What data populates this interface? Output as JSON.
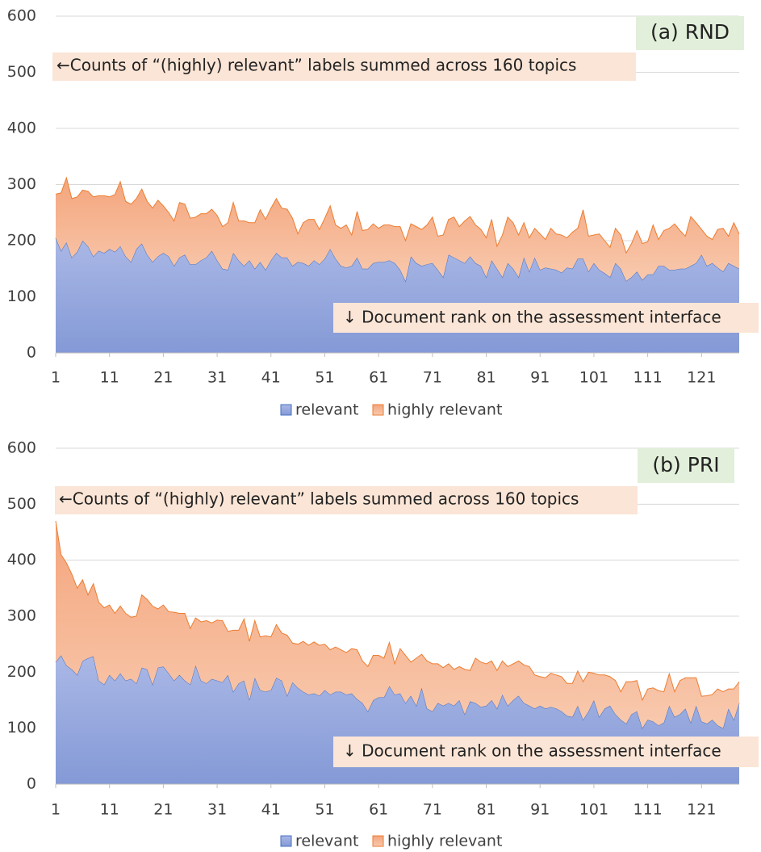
{
  "chart_data": [
    {
      "type": "area",
      "stacked": true,
      "annotations": [
        "(a) RND",
        "←Counts of “(highly) relevant” labels summed across 160 topics",
        "↓ Document rank on the assessment interface"
      ],
      "x": [
        1,
        2,
        3,
        4,
        5,
        6,
        7,
        8,
        9,
        10,
        11,
        12,
        13,
        14,
        15,
        16,
        17,
        18,
        19,
        20,
        21,
        22,
        23,
        24,
        25,
        26,
        27,
        28,
        29,
        30,
        31,
        32,
        33,
        34,
        35,
        36,
        37,
        38,
        39,
        40,
        41,
        42,
        43,
        44,
        45,
        46,
        47,
        48,
        49,
        50,
        51,
        52,
        53,
        54,
        55,
        56,
        57,
        58,
        59,
        60,
        61,
        62,
        63,
        64,
        65,
        66,
        67,
        68,
        69,
        70,
        71,
        72,
        73,
        74,
        75,
        76,
        77,
        78,
        79,
        80,
        81,
        82,
        83,
        84,
        85,
        86,
        87,
        88,
        89,
        90,
        91,
        92,
        93,
        94,
        95,
        96,
        97,
        98,
        99,
        100,
        101,
        102,
        103,
        104,
        105,
        106,
        107,
        108,
        109,
        110,
        111,
        112,
        113,
        114,
        115,
        116,
        117,
        118,
        119,
        120,
        121,
        122,
        123,
        124,
        125,
        126,
        127,
        128
      ],
      "xlim": [
        1,
        128
      ],
      "xticks": [
        1,
        11,
        21,
        31,
        41,
        51,
        61,
        71,
        81,
        91,
        101,
        111,
        121
      ],
      "ylim": [
        0,
        600
      ],
      "yticks": [
        0,
        100,
        200,
        300,
        400,
        500,
        600
      ],
      "grid": true,
      "legend": "bottom",
      "series": [
        {
          "name": "relevant",
          "color": "#4472c4",
          "values": [
            205,
            182,
            197,
            170,
            180,
            200,
            190,
            172,
            182,
            178,
            185,
            180,
            190,
            172,
            162,
            185,
            195,
            175,
            162,
            172,
            178,
            172,
            155,
            170,
            175,
            158,
            158,
            165,
            170,
            182,
            165,
            150,
            148,
            178,
            165,
            155,
            165,
            150,
            162,
            148,
            165,
            178,
            170,
            170,
            155,
            162,
            160,
            155,
            165,
            158,
            168,
            185,
            168,
            155,
            152,
            155,
            170,
            150,
            150,
            160,
            162,
            162,
            165,
            160,
            148,
            128,
            172,
            160,
            155,
            158,
            160,
            148,
            135,
            175,
            170,
            165,
            160,
            172,
            160,
            155,
            135,
            165,
            150,
            135,
            160,
            150,
            135,
            170,
            145,
            170,
            148,
            152,
            150,
            148,
            143,
            152,
            150,
            168,
            168,
            145,
            160,
            148,
            142,
            135,
            160,
            150,
            128,
            135,
            145,
            130,
            140,
            140,
            155,
            155,
            148,
            148,
            150,
            150,
            155,
            160,
            175,
            155,
            160,
            152,
            145,
            160,
            155,
            150
          ]
        },
        {
          "name": "highly relevant",
          "color": "#ed7d31",
          "values": [
            78,
            103,
            115,
            105,
            98,
            90,
            98,
            106,
            98,
            102,
            93,
            102,
            115,
            98,
            103,
            90,
            97,
            95,
            96,
            100,
            84,
            78,
            80,
            98,
            90,
            82,
            84,
            83,
            78,
            74,
            80,
            75,
            84,
            90,
            70,
            80,
            67,
            82,
            93,
            90,
            93,
            97,
            88,
            86,
            85,
            50,
            72,
            83,
            73,
            62,
            72,
            77,
            60,
            67,
            76,
            55,
            82,
            68,
            70,
            70,
            60,
            66,
            63,
            65,
            77,
            72,
            58,
            65,
            65,
            70,
            82,
            60,
            75,
            63,
            72,
            60,
            75,
            71,
            68,
            65,
            70,
            73,
            40,
            75,
            82,
            82,
            75,
            62,
            60,
            52,
            64,
            50,
            72,
            64,
            67,
            53,
            65,
            54,
            87,
            63,
            50,
            64,
            58,
            53,
            62,
            60,
            50,
            60,
            73,
            65,
            58,
            88,
            47,
            63,
            74,
            82,
            68,
            58,
            88,
            72,
            45,
            53,
            42,
            68,
            77,
            48,
            77,
            62
          ]
        }
      ]
    },
    {
      "type": "area",
      "stacked": true,
      "annotations": [
        "(b) PRI",
        "←Counts of “(highly) relevant” labels summed across 160 topics",
        "↓ Document rank on the assessment interface"
      ],
      "x": [
        1,
        2,
        3,
        4,
        5,
        6,
        7,
        8,
        9,
        10,
        11,
        12,
        13,
        14,
        15,
        16,
        17,
        18,
        19,
        20,
        21,
        22,
        23,
        24,
        25,
        26,
        27,
        28,
        29,
        30,
        31,
        32,
        33,
        34,
        35,
        36,
        37,
        38,
        39,
        40,
        41,
        42,
        43,
        44,
        45,
        46,
        47,
        48,
        49,
        50,
        51,
        52,
        53,
        54,
        55,
        56,
        57,
        58,
        59,
        60,
        61,
        62,
        63,
        64,
        65,
        66,
        67,
        68,
        69,
        70,
        71,
        72,
        73,
        74,
        75,
        76,
        77,
        78,
        79,
        80,
        81,
        82,
        83,
        84,
        85,
        86,
        87,
        88,
        89,
        90,
        91,
        92,
        93,
        94,
        95,
        96,
        97,
        98,
        99,
        100,
        101,
        102,
        103,
        104,
        105,
        106,
        107,
        108,
        109,
        110,
        111,
        112,
        113,
        114,
        115,
        116,
        117,
        118,
        119,
        120,
        121,
        122,
        123,
        124,
        125,
        126,
        127,
        128
      ],
      "xlim": [
        1,
        128
      ],
      "xticks": [
        1,
        11,
        21,
        31,
        41,
        51,
        61,
        71,
        81,
        91,
        101,
        111,
        121
      ],
      "ylim": [
        0,
        600
      ],
      "yticks": [
        0,
        100,
        200,
        300,
        400,
        500,
        600
      ],
      "grid": true,
      "legend": "bottom",
      "series": [
        {
          "name": "relevant",
          "color": "#4472c4",
          "values": [
            218,
            230,
            212,
            205,
            195,
            220,
            225,
            228,
            185,
            178,
            195,
            185,
            198,
            185,
            188,
            180,
            208,
            205,
            178,
            208,
            210,
            198,
            185,
            195,
            185,
            178,
            212,
            185,
            180,
            188,
            185,
            182,
            195,
            165,
            180,
            185,
            150,
            190,
            168,
            165,
            168,
            190,
            185,
            158,
            182,
            172,
            165,
            160,
            162,
            158,
            168,
            160,
            165,
            165,
            160,
            162,
            152,
            145,
            130,
            150,
            155,
            155,
            175,
            160,
            162,
            145,
            158,
            140,
            172,
            135,
            130,
            145,
            140,
            145,
            140,
            150,
            125,
            148,
            145,
            138,
            140,
            150,
            135,
            160,
            140,
            150,
            158,
            145,
            140,
            135,
            140,
            135,
            138,
            135,
            130,
            122,
            120,
            140,
            115,
            130,
            150,
            120,
            135,
            140,
            125,
            115,
            108,
            125,
            130,
            100,
            115,
            112,
            105,
            110,
            140,
            120,
            125,
            135,
            110,
            140,
            112,
            108,
            115,
            105,
            100,
            135,
            115,
            145
          ]
        },
        {
          "name": "highly relevant",
          "color": "#ed7d31",
          "values": [
            252,
            180,
            183,
            170,
            155,
            145,
            113,
            130,
            140,
            137,
            125,
            120,
            120,
            120,
            110,
            120,
            130,
            125,
            140,
            105,
            110,
            110,
            122,
            110,
            120,
            100,
            85,
            105,
            112,
            100,
            108,
            110,
            78,
            110,
            95,
            110,
            105,
            102,
            95,
            100,
            95,
            95,
            85,
            108,
            70,
            78,
            90,
            88,
            92,
            90,
            82,
            80,
            80,
            75,
            75,
            80,
            88,
            75,
            80,
            80,
            75,
            70,
            78,
            55,
            80,
            85,
            60,
            85,
            60,
            85,
            85,
            70,
            68,
            70,
            65,
            60,
            80,
            55,
            80,
            80,
            75,
            70,
            68,
            60,
            70,
            65,
            62,
            68,
            70,
            60,
            52,
            55,
            60,
            60,
            62,
            58,
            60,
            62,
            68,
            70,
            48,
            75,
            60,
            52,
            60,
            50,
            75,
            58,
            55,
            50,
            55,
            60,
            62,
            55,
            57,
            45,
            60,
            55,
            80,
            50,
            45,
            50,
            45,
            65,
            65,
            35,
            55,
            38
          ]
        }
      ]
    }
  ]
}
